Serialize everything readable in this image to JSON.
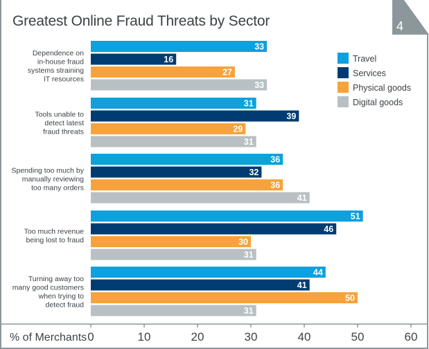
{
  "page_number": "4",
  "colors": {
    "Travel": "#0fa0de",
    "Services": "#003c71",
    "Physical goods": "#f7a23c",
    "Digital goods": "#b8c0c3",
    "frame": "#8c979b"
  },
  "chart_data": {
    "type": "bar",
    "orientation": "horizontal",
    "title": "Greatest Online Fraud Threats by Sector",
    "xlabel": "% of Merchants",
    "ylabel": "",
    "xlim": [
      0,
      60
    ],
    "xticks": [
      0,
      10,
      20,
      30,
      40,
      50,
      60
    ],
    "grid": false,
    "legend_position": "top-right",
    "categories": [
      [
        "Dependence on",
        "in-house fraud",
        "systems straining",
        "IT resources"
      ],
      [
        "Tools unable to",
        "detect latest",
        "fraud threats"
      ],
      [
        "Spending too much by",
        "manually reviewing",
        "too many orders"
      ],
      [
        "Too much revenue",
        "being lost to fraud"
      ],
      [
        "Turning away too",
        "many good customers",
        "when trying to",
        "detect fraud"
      ]
    ],
    "series": [
      {
        "name": "Travel",
        "values": [
          33,
          31,
          36,
          51,
          44
        ]
      },
      {
        "name": "Services",
        "values": [
          16,
          39,
          32,
          46,
          41
        ]
      },
      {
        "name": "Physical goods",
        "values": [
          27,
          29,
          36,
          30,
          50
        ]
      },
      {
        "name": "Digital goods",
        "values": [
          33,
          31,
          41,
          31,
          31
        ]
      }
    ]
  }
}
